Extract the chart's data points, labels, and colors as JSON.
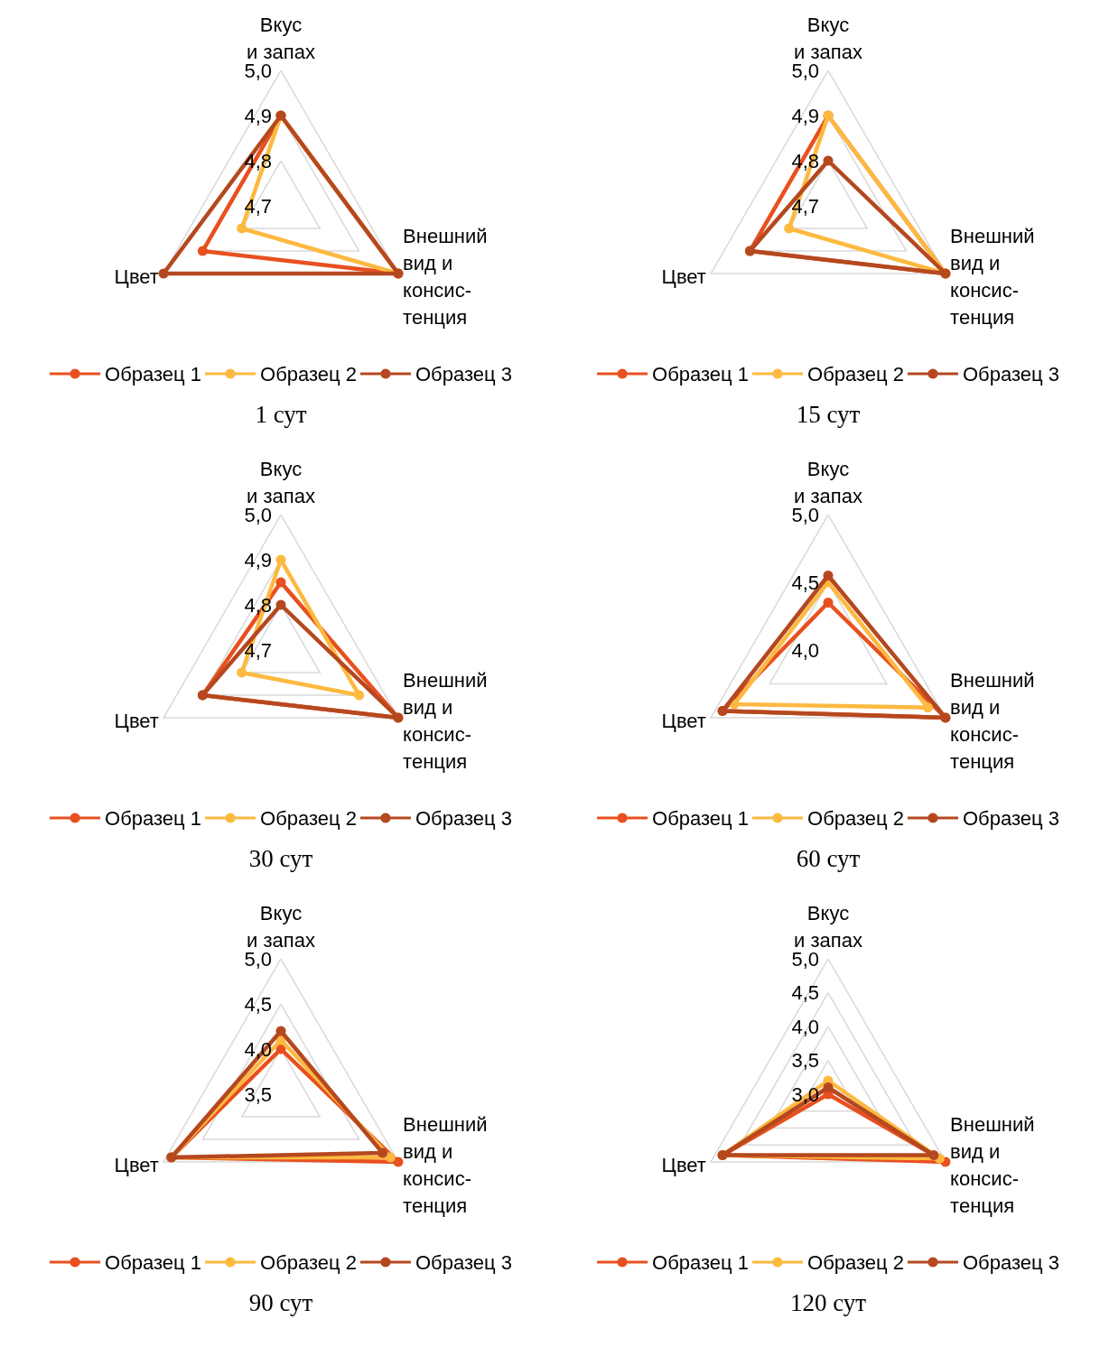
{
  "chart_data": [
    {
      "type": "radar",
      "title": "1 сут",
      "categories": [
        "Вкус\nи запах",
        "Внешний\nвид и\nконсис-\nтенция",
        "Цвет"
      ],
      "ylim": [
        4.7,
        5.0
      ],
      "yticks": [
        {
          "value": 4.7,
          "label": "4,7"
        },
        {
          "value": 4.8,
          "label": "4,8"
        },
        {
          "value": 4.9,
          "label": "4,9"
        },
        {
          "value": 5.0,
          "label": "5,0"
        }
      ],
      "legend": "bottom",
      "marker": "circle",
      "series": [
        {
          "name": "Образец 1",
          "color": "#e8501f",
          "values": [
            4.9,
            5.0,
            4.9
          ]
        },
        {
          "name": "Образец 2",
          "color": "#fdb940",
          "values": [
            4.9,
            5.0,
            4.8
          ]
        },
        {
          "name": "Образец 3",
          "color": "#b5481f",
          "values": [
            4.9,
            5.0,
            5.0
          ]
        }
      ]
    },
    {
      "type": "radar",
      "title": "15 сут",
      "categories": [
        "Вкус\nи запах",
        "Внешний\nвид и\nконсис-\nтенция",
        "Цвет"
      ],
      "ylim": [
        4.7,
        5.0
      ],
      "yticks": [
        {
          "value": 4.7,
          "label": "4,7"
        },
        {
          "value": 4.8,
          "label": "4,8"
        },
        {
          "value": 4.9,
          "label": "4,9"
        },
        {
          "value": 5.0,
          "label": "5,0"
        }
      ],
      "legend": "bottom",
      "marker": "circle",
      "series": [
        {
          "name": "Образец 1",
          "color": "#e8501f",
          "values": [
            4.9,
            5.0,
            4.9
          ]
        },
        {
          "name": "Образец 2",
          "color": "#fdb940",
          "values": [
            4.9,
            5.0,
            4.8
          ]
        },
        {
          "name": "Образец 3",
          "color": "#b5481f",
          "values": [
            4.8,
            5.0,
            4.9
          ]
        }
      ]
    },
    {
      "type": "radar",
      "title": "30 сут",
      "categories": [
        "Вкус\nи запах",
        "Внешний\nвид и\nконсис-\nтенция",
        "Цвет"
      ],
      "ylim": [
        4.7,
        5.0
      ],
      "yticks": [
        {
          "value": 4.7,
          "label": "4,7"
        },
        {
          "value": 4.8,
          "label": "4,8"
        },
        {
          "value": 4.9,
          "label": "4,9"
        },
        {
          "value": 5.0,
          "label": "5,0"
        }
      ],
      "legend": "bottom",
      "marker": "circle",
      "series": [
        {
          "name": "Образец 1",
          "color": "#e8501f",
          "values": [
            4.85,
            5.0,
            4.9
          ]
        },
        {
          "name": "Образец 2",
          "color": "#fdb940",
          "values": [
            4.9,
            4.9,
            4.8
          ]
        },
        {
          "name": "Образец 3",
          "color": "#b5481f",
          "values": [
            4.8,
            5.0,
            4.9
          ]
        }
      ]
    },
    {
      "type": "radar",
      "title": "60 сут",
      "categories": [
        "Вкус\nи запах",
        "Внешний\nвид и\nконсис-\nтенция",
        "Цвет"
      ],
      "ylim": [
        4.0,
        5.0
      ],
      "yticks": [
        {
          "value": 4.0,
          "label": "4,0"
        },
        {
          "value": 4.5,
          "label": "4,5"
        },
        {
          "value": 5.0,
          "label": "5,0"
        }
      ],
      "legend": "bottom",
      "marker": "circle",
      "series": [
        {
          "name": "Образец 1",
          "color": "#e8501f",
          "values": [
            4.35,
            5.0,
            4.9
          ]
        },
        {
          "name": "Образец 2",
          "color": "#fdb940",
          "values": [
            4.5,
            4.85,
            4.8
          ]
        },
        {
          "name": "Образец 3",
          "color": "#b5481f",
          "values": [
            4.55,
            5.0,
            4.9
          ]
        }
      ]
    },
    {
      "type": "radar",
      "title": "90 сут",
      "categories": [
        "Вкус\nи запах",
        "Внешний\nвид и\nконсис-\nтенция",
        "Цвет"
      ],
      "ylim": [
        3.5,
        5.0
      ],
      "yticks": [
        {
          "value": 3.5,
          "label": "3,5"
        },
        {
          "value": 4.0,
          "label": "4,0"
        },
        {
          "value": 4.5,
          "label": "4,5"
        },
        {
          "value": 5.0,
          "label": "5,0"
        }
      ],
      "legend": "bottom",
      "marker": "circle",
      "series": [
        {
          "name": "Образец 1",
          "color": "#e8501f",
          "values": [
            4.0,
            5.0,
            4.9
          ]
        },
        {
          "name": "Образец 2",
          "color": "#fdb940",
          "values": [
            4.1,
            4.9,
            4.9
          ]
        },
        {
          "name": "Образец 3",
          "color": "#b5481f",
          "values": [
            4.2,
            4.8,
            4.9
          ]
        }
      ]
    },
    {
      "type": "radar",
      "title": "120 сут",
      "categories": [
        "Вкус\nи запах",
        "Внешний\nвид и\nконсис-\nтенция",
        "Цвет"
      ],
      "ylim": [
        3.0,
        5.0
      ],
      "yticks": [
        {
          "value": 3.0,
          "label": "3,0"
        },
        {
          "value": 3.5,
          "label": "3,5"
        },
        {
          "value": 4.0,
          "label": "4,0"
        },
        {
          "value": 4.5,
          "label": "4,5"
        },
        {
          "value": 5.0,
          "label": "5,0"
        }
      ],
      "legend": "bottom",
      "marker": "circle",
      "series": [
        {
          "name": "Образец 1",
          "color": "#e8501f",
          "values": [
            3.0,
            5.0,
            4.8
          ]
        },
        {
          "name": "Образец 2",
          "color": "#fdb940",
          "values": [
            3.2,
            4.9,
            4.8
          ]
        },
        {
          "name": "Образец 3",
          "color": "#b5481f",
          "values": [
            3.1,
            4.8,
            4.8
          ]
        }
      ]
    }
  ]
}
